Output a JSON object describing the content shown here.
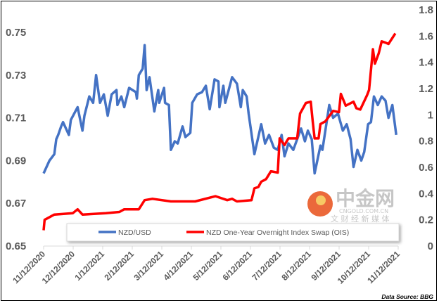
{
  "chart_data": {
    "type": "line",
    "title": "",
    "xlabel": "",
    "ylabel": "",
    "y2label": "",
    "x_ticks": [
      "11/12/2020",
      "12/12/2020",
      "1/12/2021",
      "2/12/2021",
      "3/12/2021",
      "4/12/2021",
      "5/12/2021",
      "6/12/2021",
      "7/12/2021",
      "8/12/2021",
      "9/12/2021",
      "10/12/2021",
      "11/12/2021"
    ],
    "x_range": [
      "2020-11-12",
      "2021-11-12"
    ],
    "y_left": {
      "range": [
        0.65,
        0.75
      ],
      "ticks": [
        "0.65",
        "0.67",
        "0.69",
        "0.71",
        "0.73",
        "0.75"
      ]
    },
    "y_right": {
      "range": [
        0,
        1.8
      ],
      "ticks": [
        "0",
        "0.2",
        "0.4",
        "0.6",
        "0.8",
        "1",
        "1.2",
        "1.4",
        "1.6",
        "1.8"
      ]
    },
    "grid": false,
    "legend_placement": "bottom-inside",
    "series": [
      {
        "name": "NZD/USD",
        "axis": "left",
        "color": "#4472C4",
        "x": [
          "2020-11-12",
          "2020-11-18",
          "2020-11-23",
          "2020-11-25",
          "2020-11-27",
          "2020-11-30",
          "2020-12-02",
          "2020-12-08",
          "2020-12-10",
          "2020-12-17",
          "2020-12-22",
          "2020-12-24",
          "2020-12-29",
          "2021-01-02",
          "2021-01-05",
          "2021-01-09",
          "2021-01-13",
          "2021-01-17",
          "2021-01-21",
          "2021-01-26",
          "2021-01-27",
          "2021-01-31",
          "2021-02-03",
          "2021-02-08",
          "2021-02-15",
          "2021-02-16",
          "2021-02-18",
          "2021-02-22",
          "2021-02-24",
          "2021-02-26",
          "2021-03-01",
          "2021-03-06",
          "2021-03-10",
          "2021-03-11",
          "2021-03-16",
          "2021-03-17",
          "2021-03-21",
          "2021-03-23",
          "2021-03-27",
          "2021-03-30",
          "2021-04-04",
          "2021-04-07",
          "2021-04-12",
          "2021-04-14",
          "2021-04-19",
          "2021-04-24",
          "2021-04-28",
          "2021-05-02",
          "2021-05-07",
          "2021-05-11",
          "2021-05-12",
          "2021-05-16",
          "2021-05-18",
          "2021-05-25",
          "2021-05-30",
          "2021-06-03",
          "2021-06-05",
          "2021-06-09",
          "2021-06-11",
          "2021-06-17",
          "2021-06-24",
          "2021-06-28",
          "2021-07-02",
          "2021-07-07",
          "2021-07-11",
          "2021-07-15",
          "2021-07-18",
          "2021-07-22",
          "2021-07-27",
          "2021-07-31",
          "2021-08-04",
          "2021-08-08",
          "2021-08-11",
          "2021-08-15",
          "2021-08-18",
          "2021-08-24",
          "2021-08-26",
          "2021-09-02",
          "2021-09-06",
          "2021-09-11",
          "2021-09-16",
          "2021-09-20",
          "2021-09-24",
          "2021-09-27",
          "2021-10-01",
          "2021-10-05",
          "2021-10-08",
          "2021-10-12",
          "2021-10-15",
          "2021-10-18",
          "2021-10-22",
          "2021-10-26",
          "2021-10-30",
          "2021-11-02",
          "2021-11-06",
          "2021-11-10"
        ],
        "values": [
          0.684,
          0.69,
          0.693,
          0.7,
          0.702,
          0.706,
          0.708,
          0.702,
          0.709,
          0.715,
          0.704,
          0.711,
          0.72,
          0.717,
          0.73,
          0.717,
          0.721,
          0.711,
          0.721,
          0.723,
          0.716,
          0.72,
          0.715,
          0.724,
          0.722,
          0.719,
          0.73,
          0.733,
          0.744,
          0.723,
          0.729,
          0.713,
          0.723,
          0.717,
          0.724,
          0.717,
          0.716,
          0.695,
          0.699,
          0.698,
          0.706,
          0.701,
          0.703,
          0.717,
          0.721,
          0.722,
          0.725,
          0.714,
          0.728,
          0.727,
          0.715,
          0.725,
          0.717,
          0.729,
          0.726,
          0.715,
          0.723,
          0.72,
          0.712,
          0.693,
          0.707,
          0.698,
          0.702,
          0.696,
          0.695,
          0.702,
          0.692,
          0.698,
          0.695,
          0.7,
          0.705,
          0.699,
          0.704,
          0.7,
          0.684,
          0.697,
          0.695,
          0.716,
          0.71,
          0.712,
          0.704,
          0.707,
          0.7,
          0.687,
          0.695,
          0.69,
          0.694,
          0.707,
          0.708,
          0.72,
          0.716,
          0.72,
          0.718,
          0.71,
          0.716,
          0.702
        ]
      },
      {
        "name": "NZD One-Year Overnight Index Swap (OIS)",
        "axis": "right",
        "color": "#FF0000",
        "x": [
          "2020-11-12",
          "2020-11-13",
          "2020-11-23",
          "2020-12-12",
          "2020-12-17",
          "2020-12-22",
          "2021-01-15",
          "2021-01-29",
          "2021-02-03",
          "2021-02-18",
          "2021-02-24",
          "2021-03-04",
          "2021-03-23",
          "2021-04-17",
          "2021-05-08",
          "2021-05-20",
          "2021-05-25",
          "2021-05-30",
          "2021-06-14",
          "2021-06-17",
          "2021-06-21",
          "2021-06-24",
          "2021-06-29",
          "2021-07-04",
          "2021-07-11",
          "2021-07-13",
          "2021-07-18",
          "2021-07-22",
          "2021-07-31",
          "2021-08-03",
          "2021-08-09",
          "2021-08-14",
          "2021-08-16",
          "2021-08-18",
          "2021-08-22",
          "2021-08-24",
          "2021-08-29",
          "2021-09-02",
          "2021-09-06",
          "2021-09-12",
          "2021-09-14",
          "2021-09-19",
          "2021-09-27",
          "2021-09-30",
          "2021-10-04",
          "2021-10-11",
          "2021-10-13",
          "2021-10-17",
          "2021-10-19",
          "2021-10-23",
          "2021-10-26",
          "2021-10-30",
          "2021-11-02",
          "2021-11-09"
        ],
        "values": [
          0.12,
          0.2,
          0.24,
          0.25,
          0.28,
          0.24,
          0.25,
          0.26,
          0.28,
          0.28,
          0.35,
          0.36,
          0.34,
          0.34,
          0.38,
          0.35,
          0.36,
          0.34,
          0.35,
          0.44,
          0.45,
          0.49,
          0.51,
          0.57,
          0.56,
          0.82,
          0.77,
          0.82,
          0.82,
          1.01,
          1.09,
          1.1,
          0.95,
          0.82,
          0.82,
          0.93,
          0.95,
          0.99,
          1.03,
          1.02,
          1.16,
          1.07,
          1.1,
          1.05,
          1.04,
          1.15,
          1.19,
          1.5,
          1.39,
          1.47,
          1.56,
          1.55,
          1.54,
          1.62
        ]
      }
    ],
    "annotations": [
      "Data Source: BBG"
    ]
  },
  "watermark": {
    "brand": "中金网",
    "url": "CNGOLD.COM.CN",
    "tagline": "文 财 经 新 媒 体"
  }
}
